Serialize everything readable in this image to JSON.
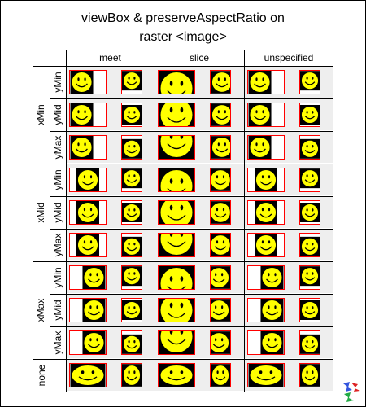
{
  "title_line1": "viewBox & preserveAspectRatio on",
  "title_line2": "raster <image>",
  "columns": [
    "meet",
    "slice",
    "unspecified"
  ],
  "x_groups": [
    "xMin",
    "xMid",
    "xMax",
    "none"
  ],
  "y_labels": [
    "yMin",
    "yMid",
    "yMax"
  ],
  "icon_names": {
    "smiley": "smiley-face-icon",
    "logo": "svg-logo-icon"
  },
  "colors": {
    "face": "#ffff00",
    "outline": "#000000",
    "viewport_border": "#ff0000",
    "band": "#eeeeee"
  }
}
